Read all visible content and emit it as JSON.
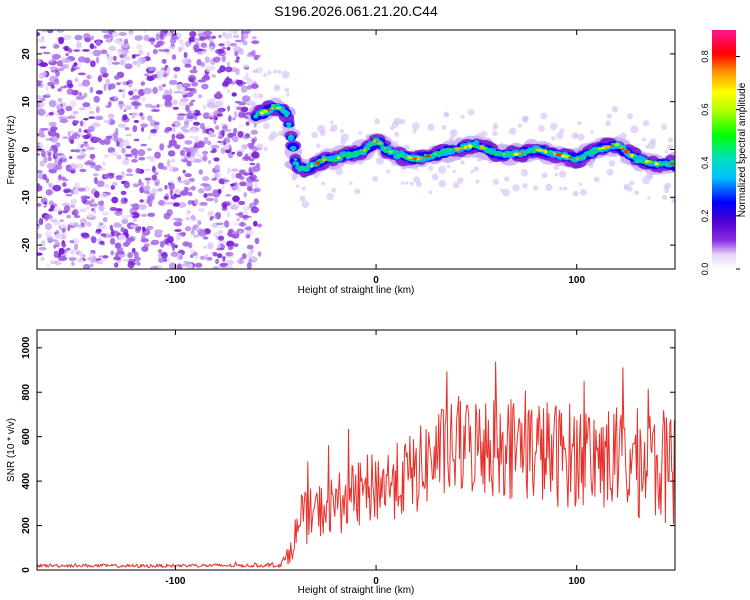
{
  "title": "S196.2026.061.21.20.C44",
  "colors": {
    "line": "#e8302a",
    "low": "#7a1fd6",
    "background": "#ffffff"
  },
  "chart_data": [
    {
      "type": "heatmap",
      "name": "spectrogram",
      "title": "S196.2026.061.21.20.C44",
      "xlabel": "Height of straight line (km)",
      "ylabel": "Frequency (Hz)",
      "xlim": [
        -169,
        149
      ],
      "ylim": [
        -25,
        25
      ],
      "xticks": [
        -100,
        0,
        100
      ],
      "yticks": [
        -20,
        -10,
        0,
        10,
        20
      ],
      "xtick_labels": [
        "-100",
        "0",
        "100"
      ],
      "ytick_labels": [
        "-20",
        "-10",
        "0",
        "10",
        "20"
      ],
      "noise_region_x": [
        -169,
        -58
      ],
      "ridge": {
        "x": [
          -60,
          -55,
          -50,
          -45,
          -42,
          -40,
          -38,
          -35,
          -30,
          -25,
          -20,
          -15,
          -10,
          -5,
          0,
          5,
          10,
          20,
          30,
          40,
          50,
          60,
          70,
          80,
          90,
          100,
          110,
          120,
          130,
          140,
          149
        ],
        "y": [
          7,
          8,
          9,
          8,
          2,
          -3,
          -4,
          -4,
          -3,
          -2,
          -2,
          -1,
          -1,
          0,
          2,
          0,
          -1,
          -2,
          -1,
          0,
          1,
          -1,
          -1,
          0,
          -1,
          -2,
          0,
          1,
          -2,
          -3,
          -3
        ]
      },
      "colorbar": {
        "label": "Normalized spectral amplitude",
        "range": [
          0,
          0.9
        ],
        "ticks": [
          0,
          0.2,
          0.4,
          0.6,
          0.8
        ],
        "tick_labels": [
          "0.0",
          "0.2",
          "0.4",
          "0.6",
          "0.8"
        ]
      }
    },
    {
      "type": "line",
      "name": "snr",
      "xlabel": "Height of straight line (km)",
      "ylabel": "SNR (10 * v/v)",
      "xlim": [
        -169,
        149
      ],
      "ylim": [
        0,
        1080
      ],
      "xticks": [
        -100,
        0,
        100
      ],
      "yticks": [
        0,
        200,
        400,
        600,
        800,
        1000
      ],
      "xtick_labels": [
        "-100",
        "0",
        "100"
      ],
      "ytick_labels": [
        "0",
        "200",
        "400",
        "600",
        "800",
        "1000"
      ],
      "series": [
        {
          "name": "SNR",
          "x": [
            -169,
            -150,
            -120,
            -90,
            -60,
            -48,
            -44,
            -40,
            -36,
            -30,
            -20,
            -10,
            0,
            10,
            20,
            30,
            40,
            50,
            60,
            70,
            80,
            90,
            100,
            110,
            120,
            130,
            140,
            149
          ],
          "y": [
            20,
            20,
            18,
            20,
            20,
            22,
            60,
            160,
            230,
            260,
            300,
            330,
            380,
            400,
            440,
            520,
            540,
            560,
            560,
            550,
            540,
            520,
            520,
            510,
            500,
            480,
            470,
            450
          ],
          "spread": [
            8,
            8,
            8,
            8,
            8,
            10,
            40,
            90,
            120,
            120,
            140,
            150,
            170,
            170,
            190,
            210,
            220,
            230,
            240,
            240,
            240,
            240,
            240,
            240,
            240,
            250,
            260,
            260
          ]
        }
      ]
    }
  ]
}
